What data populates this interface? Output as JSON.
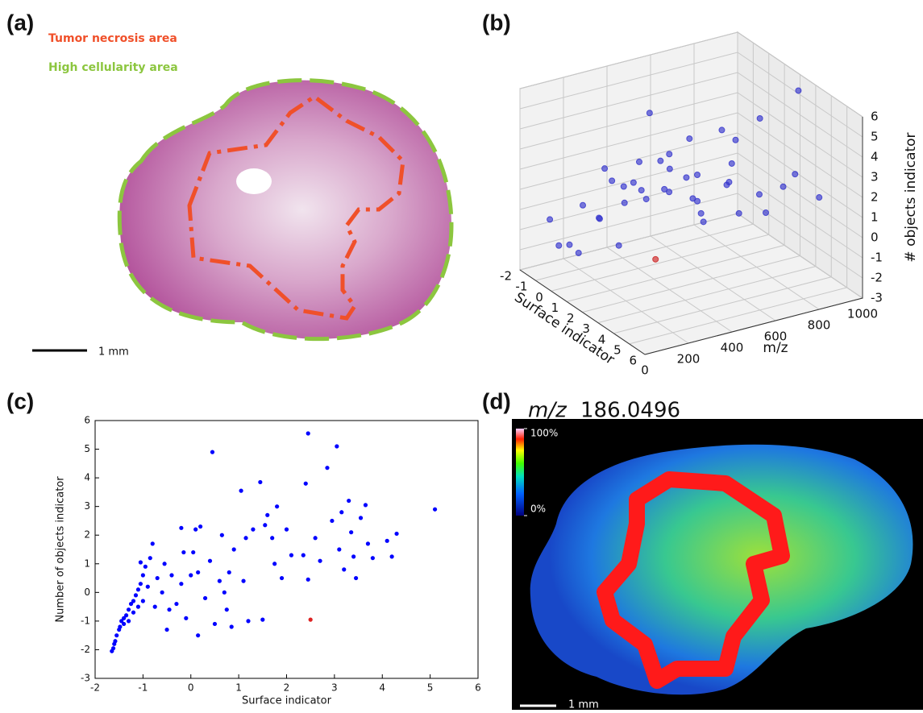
{
  "panel_labels": [
    "(a)",
    "(b)",
    "(c)",
    "(d)"
  ],
  "histology": {
    "legend": [
      {
        "label": "Tumor necrosis area",
        "color": "#f0502a"
      },
      {
        "label": "High cellularity area",
        "color": "#8cc63f"
      }
    ],
    "scale_bar": "1 mm"
  },
  "chart_data": [
    {
      "type": "scatter3d",
      "xlabel": "Surface indicator",
      "ylabel": "m/z",
      "zlabel": "# objects indicator",
      "xlim": [
        -2,
        6
      ],
      "xticks": [
        -2,
        -1,
        0,
        1,
        2,
        3,
        4,
        5,
        6
      ],
      "ylim": [
        0,
        1000
      ],
      "yticks": [
        0,
        200,
        400,
        600,
        800,
        1000
      ],
      "zlim": [
        -3,
        6
      ],
      "zticks": [
        -3,
        -2,
        -1,
        0,
        1,
        2,
        3,
        4,
        5,
        6
      ],
      "series": [
        {
          "color": "#3333cc",
          "x": [
            -1.6,
            -1.4,
            -1.2,
            -1.0,
            -0.9,
            -0.8,
            -0.6,
            -0.5,
            -0.4,
            -0.2,
            0.0,
            0.1,
            0.15,
            0.3,
            0.45,
            0.6,
            0.8,
            0.9,
            1.05,
            1.2,
            1.3,
            1.45,
            1.6,
            1.8,
            1.9,
            2.1,
            2.4,
            2.45,
            2.6,
            2.85,
            3.05,
            3.2,
            3.35,
            3.65,
            3.8,
            4.2,
            4.3,
            5.1,
            -1.3,
            -1.1,
            -0.7,
            0.5
          ],
          "y": [
            150,
            320,
            80,
            450,
            210,
            600,
            380,
            120,
            700,
            260,
            520,
            840,
            300,
            650,
            420,
            180,
            760,
            350,
            560,
            900,
            240,
            680,
            430,
            150,
            820,
            500,
            330,
            960,
            620,
            200,
            740,
            470,
            880,
            280,
            590,
            930,
            380,
            700,
            530,
            700,
            880,
            90
          ],
          "values": [
            -2.0,
            -1.0,
            -0.3,
            0.6,
            0.2,
            1.7,
            0.0,
            -1.3,
            0.6,
            2.25,
            0.6,
            2.2,
            -1.5,
            -0.2,
            4.9,
            0.4,
            0.7,
            1.5,
            3.55,
            -1.0,
            2.2,
            3.85,
            2.7,
            3.0,
            0.5,
            1.3,
            3.8,
            5.55,
            1.9,
            4.35,
            5.1,
            0.8,
            2.1,
            3.05,
            1.2,
            1.25,
            2.05,
            2.9,
            -0.6,
            0.1,
            0.5,
            -1.1
          ]
        },
        {
          "color": "#cc2222",
          "x": [
            2.5
          ],
          "y": [
            300
          ],
          "values": [
            -0.95
          ]
        }
      ]
    },
    {
      "type": "scatter",
      "xlabel": "Surface indicator",
      "ylabel": "Number of objects indicator",
      "xlim": [
        -2,
        6
      ],
      "xticks": [
        -2,
        -1,
        0,
        1,
        2,
        3,
        4,
        5,
        6
      ],
      "ylim": [
        -3,
        6
      ],
      "yticks": [
        -3,
        -2,
        -1,
        0,
        1,
        2,
        3,
        4,
        5,
        6
      ],
      "series": [
        {
          "color": "#0000ff",
          "x": [
            -1.65,
            -1.62,
            -1.6,
            -1.58,
            -1.55,
            -1.5,
            -1.48,
            -1.45,
            -1.4,
            -1.4,
            -1.35,
            -1.3,
            -1.3,
            -1.25,
            -1.2,
            -1.2,
            -1.15,
            -1.1,
            -1.1,
            -1.05,
            -1.0,
            -1.0,
            -0.95,
            -1.05,
            -0.9,
            -0.85,
            -0.8,
            -0.75,
            -0.7,
            -0.6,
            -0.55,
            -0.5,
            -0.45,
            -0.4,
            -0.3,
            -0.2,
            -0.2,
            -0.15,
            -0.1,
            0.0,
            0.05,
            0.1,
            0.15,
            0.15,
            0.2,
            0.3,
            0.4,
            0.45,
            0.5,
            0.6,
            0.65,
            0.7,
            0.75,
            0.8,
            0.85,
            0.9,
            1.05,
            1.1,
            1.15,
            1.2,
            1.3,
            1.45,
            1.5,
            1.55,
            1.6,
            1.7,
            1.75,
            1.8,
            1.9,
            2.0,
            2.1,
            2.35,
            2.4,
            2.45,
            2.45,
            2.6,
            2.7,
            2.85,
            2.95,
            3.05,
            3.1,
            3.15,
            3.2,
            3.3,
            3.35,
            3.4,
            3.45,
            3.55,
            3.65,
            3.7,
            3.8,
            4.1,
            4.2,
            4.3,
            5.1
          ],
          "values": [
            -2.05,
            -1.95,
            -1.8,
            -1.7,
            -1.5,
            -1.3,
            -1.2,
            -1.0,
            -0.9,
            -1.1,
            -0.8,
            -0.6,
            -1.0,
            -0.4,
            -0.3,
            -0.7,
            -0.1,
            0.1,
            -0.5,
            0.3,
            0.6,
            -0.3,
            0.9,
            1.05,
            0.2,
            1.2,
            1.7,
            -0.5,
            0.5,
            0.0,
            1.0,
            -1.3,
            -0.6,
            0.6,
            -0.4,
            2.25,
            0.3,
            1.4,
            -0.9,
            0.6,
            1.4,
            2.2,
            -1.5,
            0.7,
            2.3,
            -0.2,
            1.1,
            4.9,
            -1.1,
            0.4,
            2.0,
            0.0,
            -0.6,
            0.7,
            -1.2,
            1.5,
            3.55,
            0.4,
            1.9,
            -1.0,
            2.2,
            3.85,
            -0.95,
            2.35,
            2.7,
            1.9,
            1.0,
            3.0,
            0.5,
            2.2,
            1.3,
            1.3,
            3.8,
            5.55,
            0.45,
            1.9,
            1.1,
            4.35,
            2.5,
            5.1,
            1.5,
            2.8,
            0.8,
            3.2,
            2.1,
            1.25,
            0.5,
            2.6,
            3.05,
            1.7,
            1.2,
            1.8,
            1.25,
            2.05,
            2.9
          ]
        },
        {
          "color": "#dd2222",
          "x": [
            2.5
          ],
          "values": [
            -0.95
          ]
        }
      ]
    },
    {
      "type": "heatmap",
      "title_italic": "m/z",
      "title": "186.0496",
      "clim": [
        0,
        100
      ],
      "colorbar_ticks": [
        {
          "value": 100,
          "label": "100%"
        },
        {
          "value": 0,
          "label": "0%"
        }
      ],
      "scale_bar": "1 mm"
    }
  ]
}
